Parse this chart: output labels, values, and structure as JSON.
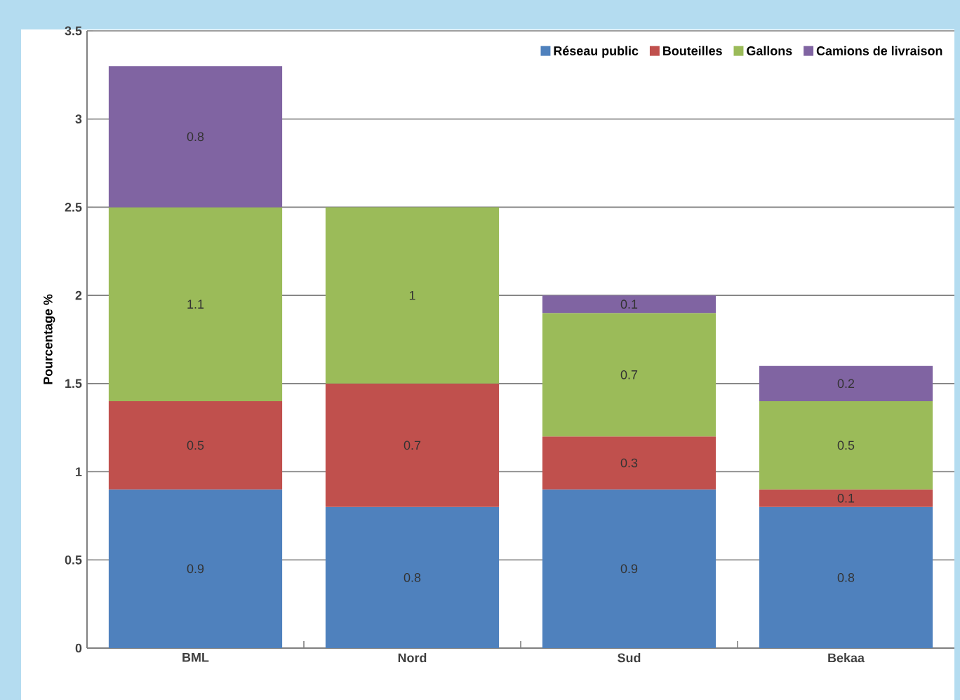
{
  "chart_data": {
    "type": "bar",
    "stacked": true,
    "ylabel": "Pourcentage %",
    "categories": [
      "BML",
      "Nord",
      "Sud",
      "Bekaa"
    ],
    "series": [
      {
        "name": "Réseau public",
        "color": "#4f81bd",
        "values": [
          0.9,
          0.8,
          0.9,
          0.8
        ],
        "value_labels": [
          "0.9",
          "0.8",
          "0.9",
          "0.8"
        ]
      },
      {
        "name": "Bouteilles",
        "color": "#c0504d",
        "values": [
          0.5,
          0.7,
          0.3,
          0.1
        ],
        "value_labels": [
          "0.5",
          "0.7",
          "0.3",
          "0.1"
        ]
      },
      {
        "name": "Gallons",
        "color": "#9bbb59",
        "values": [
          1.1,
          1,
          0.7,
          0.5
        ],
        "value_labels": [
          "1.1",
          "1",
          "0.7",
          "0.5"
        ]
      },
      {
        "name": "Camions de livraison",
        "color": "#8064a2",
        "values": [
          0.8,
          null,
          0.1,
          0.2
        ],
        "value_labels": [
          "0.8",
          null,
          "0.1",
          "0.2"
        ]
      }
    ],
    "ylim": [
      0,
      3.5
    ],
    "yticks": [
      0,
      0.5,
      1,
      1.5,
      2,
      2.5,
      3,
      3.5
    ],
    "grid": "y",
    "legend": "top right"
  }
}
